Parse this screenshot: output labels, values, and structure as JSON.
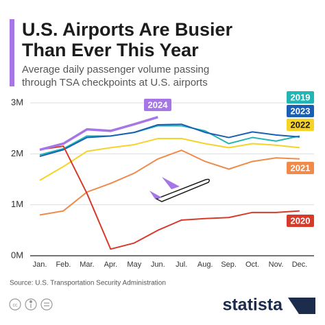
{
  "chart_data": {
    "type": "line",
    "title": [
      "U.S. Airports Are Busier",
      "Than Ever This Year"
    ],
    "subtitle": [
      "Average daily passenger volume passing",
      "through TSA checkpoints at U.S. airports"
    ],
    "categories": [
      "Jan.",
      "Feb.",
      "Mar.",
      "Apr.",
      "May",
      "Jun.",
      "Jul.",
      "Aug.",
      "Sep.",
      "Oct.",
      "Nov.",
      "Dec."
    ],
    "ylim": [
      0,
      3
    ],
    "yticks": [
      {
        "value": 0,
        "label": "0M"
      },
      {
        "value": 1,
        "label": "1M"
      },
      {
        "value": 2,
        "label": "2M"
      },
      {
        "value": 3,
        "label": "3M"
      }
    ],
    "grid": true,
    "series": [
      {
        "name": "2019",
        "color": "#22b5b5",
        "values": [
          1.98,
          2.1,
          2.35,
          2.35,
          2.42,
          2.55,
          2.55,
          2.45,
          2.2,
          2.32,
          2.25,
          2.35
        ]
      },
      {
        "name": "2023",
        "color": "#1a5fb4",
        "values": [
          1.95,
          2.08,
          2.32,
          2.35,
          2.42,
          2.57,
          2.58,
          2.42,
          2.32,
          2.43,
          2.37,
          2.33
        ]
      },
      {
        "name": "2022",
        "color": "#f5d327",
        "values": [
          1.48,
          1.75,
          2.05,
          2.12,
          2.18,
          2.3,
          2.3,
          2.2,
          2.12,
          2.2,
          2.17,
          2.12
        ]
      },
      {
        "name": "2021",
        "color": "#f08a4b",
        "values": [
          0.8,
          0.88,
          1.25,
          1.42,
          1.62,
          1.9,
          2.07,
          1.85,
          1.7,
          1.85,
          1.92,
          1.9
        ]
      },
      {
        "name": "2020",
        "color": "#d63a2a",
        "values": [
          2.08,
          2.15,
          1.22,
          0.13,
          0.25,
          0.5,
          0.7,
          0.73,
          0.75,
          0.85,
          0.85,
          0.88
        ]
      },
      {
        "name": "2024",
        "color": "#a675e6",
        "values": [
          2.08,
          2.2,
          2.48,
          2.45,
          2.58,
          2.72,
          null,
          null,
          null,
          null,
          null,
          null
        ]
      }
    ],
    "source": "Source: U.S. Transportation Security Administration",
    "brand": "statista"
  }
}
